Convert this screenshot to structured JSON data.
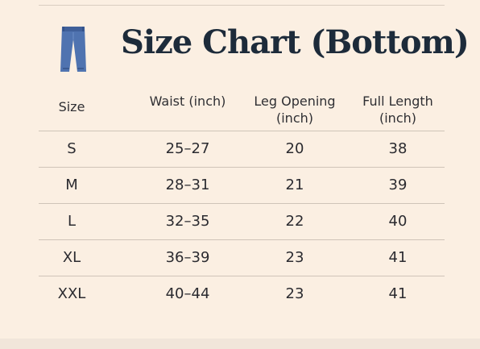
{
  "title": "Size Chart (Bottom)",
  "icon": "pants-icon",
  "colors": {
    "background": "#fbefe2",
    "title": "#1d2b3a",
    "icon": "#4f73b0",
    "rule": "#cfc4b8"
  },
  "table": {
    "headers": {
      "size": "Size",
      "waist": "Waist (inch)",
      "leg_opening": "Leg Opening (inch)",
      "full_length": "Full Length (inch)"
    },
    "rows": [
      {
        "size": "S",
        "waist": "25–27",
        "leg_opening": "20",
        "full_length": "38"
      },
      {
        "size": "M",
        "waist": "28–31",
        "leg_opening": "21",
        "full_length": "39"
      },
      {
        "size": "L",
        "waist": "32–35",
        "leg_opening": "22",
        "full_length": "40"
      },
      {
        "size": "XL",
        "waist": "36–39",
        "leg_opening": "23",
        "full_length": "41"
      },
      {
        "size": "XXL",
        "waist": "40–44",
        "leg_opening": "23",
        "full_length": "41"
      }
    ]
  }
}
